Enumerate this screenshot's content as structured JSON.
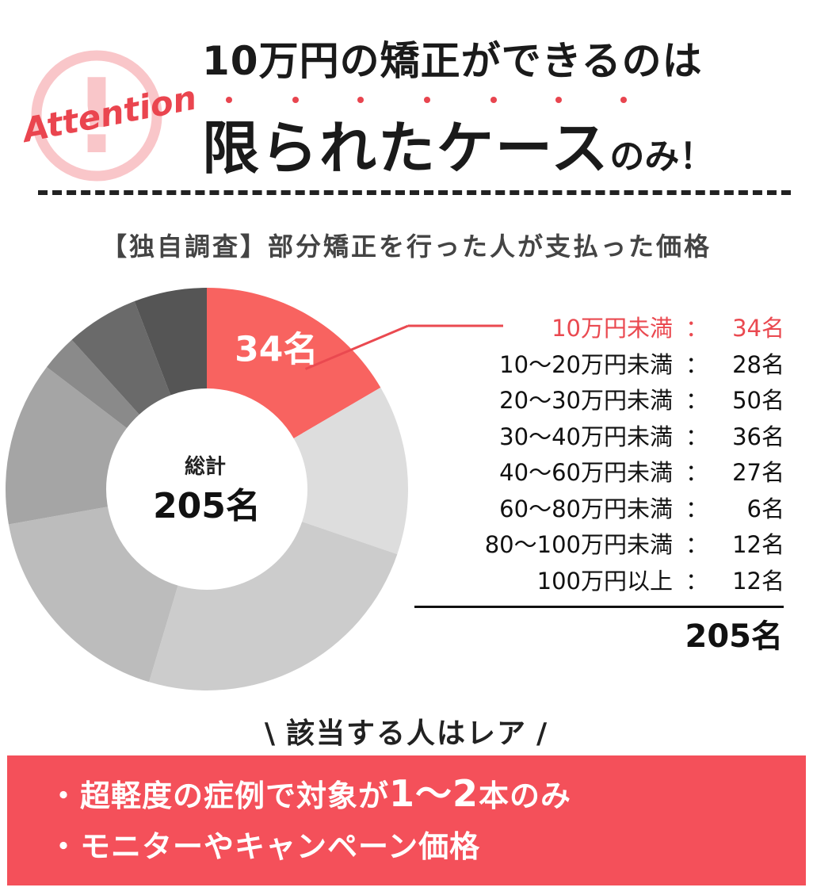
{
  "header": {
    "badge": "Attention",
    "badge_mark": "!",
    "line1": "10万円の矯正ができるのは",
    "line2_main": "限られたケース",
    "line2_tail": "のみ！",
    "accent_color": "#e8454f"
  },
  "survey": {
    "title": "【独自調査】部分矯正を行った人が支払った価格"
  },
  "chart_data": {
    "type": "pie",
    "style": "donut",
    "categories": [
      "10万円未満",
      "10〜20万円未満",
      "20〜30万円未満",
      "30〜40万円未満",
      "40〜60万円未満",
      "60〜80万円未満",
      "80〜100万円未満",
      "100万円以上"
    ],
    "values": [
      34,
      28,
      50,
      36,
      27,
      6,
      12,
      12
    ],
    "unit": "名",
    "highlight_index": 0,
    "highlight_label": "34名",
    "colors": [
      "#f86360",
      "#dddddd",
      "#cccccc",
      "#bcbcbc",
      "#a5a5a5",
      "#8a8a8a",
      "#6a6a6a",
      "#555555"
    ],
    "center_title": "総計",
    "center_value": "205名",
    "total_label": "205名"
  },
  "legend": {
    "items": [
      {
        "label": "10万円未満",
        "count": "34名"
      },
      {
        "label": "10〜20万円未満",
        "count": "28名"
      },
      {
        "label": "20〜30万円未満",
        "count": "50名"
      },
      {
        "label": "30〜40万円未満",
        "count": "36名"
      },
      {
        "label": "40〜60万円未満",
        "count": "27名"
      },
      {
        "label": "60〜80万円未満",
        "count": "6名"
      },
      {
        "label": "80〜100万円未満",
        "count": "12名"
      },
      {
        "label": "100万円以上",
        "count": "12名"
      }
    ],
    "separator": "：",
    "total": "205名"
  },
  "rare": {
    "title": "該当する人はレア",
    "slash_left": "\\",
    "slash_right": "/"
  },
  "callout": {
    "bullet": "・",
    "item1_prefix": "超軽度の症例で対象が",
    "item1_emph": "1〜2",
    "item1_suffix": "本のみ",
    "item2": "モニターやキャンペーン価格",
    "bg_color": "#f4505a"
  }
}
